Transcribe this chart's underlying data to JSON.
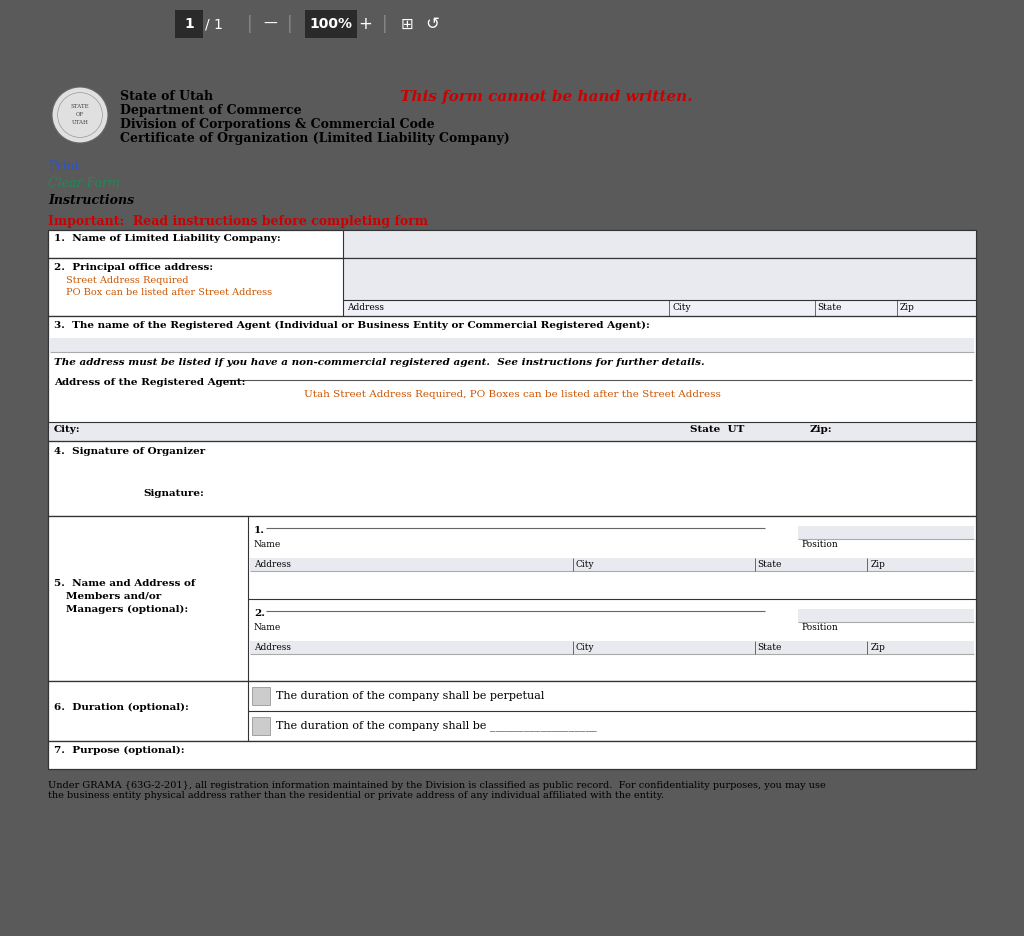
{
  "bg_toolbar": "#3d3d3d",
  "bg_white": "#ffffff",
  "bg_light": "#e8eaf0",
  "bg_page": "#5a5a5a",
  "text_black": "#000000",
  "text_red": "#cc0000",
  "text_blue": "#3355bb",
  "text_green": "#228855",
  "text_orange": "#cc5500",
  "toolbar_text": "#ffffff",
  "title_line1": "State of Utah",
  "title_line2": "Department of Commerce",
  "title_line3": "Division of Corporations & Commercial Code",
  "title_line4": "Certificate of Organization (Limited Liability Company)",
  "cannot_handwritten": "This form cannot be hand written.",
  "print_label": "Print",
  "clear_form_label": "Clear Form",
  "instructions_label": "Instructions",
  "important_label": "Important:  Read instructions before completing form",
  "field1_label": "1.  Name of Limited Liability Company:",
  "field2_label": "2.  Principal office address:",
  "field2_sub1": "Street Address Required",
  "field2_sub2": "PO Box can be listed after Street Address",
  "field2_address": "Address",
  "field2_city": "City",
  "field2_state": "State",
  "field2_zip": "Zip",
  "field3_label": "3.  The name of the Registered Agent (Individual or Business Entity or Commercial Registered Agent):",
  "field3_note": "The address must be listed if you have a non-commercial registered agent.  See instructions for further details.",
  "field3_address_label": "Address of the Registered Agent:",
  "field3_utah_note": "Utah Street Address Required, PO Boxes can be listed after the Street Address",
  "field3_city": "City:",
  "field3_state_ut": "State  UT",
  "field3_zip": "Zip:",
  "field4_label": "4.  Signature of Organizer",
  "field4_sig": "Signature:",
  "field5_label_1": "5.  Name and Address of",
  "field5_label_2": "Members and/or",
  "field5_label_3": "Managers (optional):",
  "field5_1": "1.",
  "field5_name1": "Name",
  "field5_position1": "Position",
  "field5_address1": "Address",
  "field5_city1": "City",
  "field5_state1": "State",
  "field5_zip1": "Zip",
  "field5_2": "2.",
  "field5_name2": "Name",
  "field5_position2": "Position",
  "field5_address2": "Address",
  "field5_city2": "City",
  "field5_state2": "State",
  "field5_zip2": "Zip",
  "field6_label": "6.  Duration (optional):",
  "field6_option1": "The duration of the company shall be perpetual",
  "field6_option2": "The duration of the company shall be ___________________",
  "field7_label": "7.  Purpose (optional):",
  "footer_text": "Under GRAMA {63G-2-201}, all registration information maintained by the Division is classified as public record.  For confidentiality purposes, you may use\nthe business entity physical address rather than the residential or private address of any individual affiliated with the entity."
}
